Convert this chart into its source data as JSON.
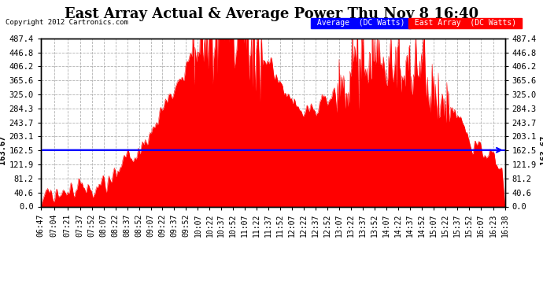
{
  "title": "East Array Actual & Average Power Thu Nov 8 16:40",
  "copyright": "Copyright 2012 Cartronics.com",
  "avg_value": 163.67,
  "avg_label": "163.67",
  "y_max": 487.4,
  "y_ticks": [
    0.0,
    40.6,
    81.2,
    121.9,
    162.5,
    203.1,
    243.7,
    284.3,
    325.0,
    365.6,
    406.2,
    446.8,
    487.4
  ],
  "y_tick_labels": [
    "0.0",
    "40.6",
    "81.2",
    "121.9",
    "162.5",
    "203.1",
    "243.7",
    "284.3",
    "325.0",
    "365.6",
    "406.2",
    "446.8",
    "487.4"
  ],
  "x_labels": [
    "06:47",
    "07:04",
    "07:21",
    "07:37",
    "07:52",
    "08:07",
    "08:22",
    "08:37",
    "08:52",
    "09:07",
    "09:22",
    "09:37",
    "09:52",
    "10:07",
    "10:22",
    "10:37",
    "10:52",
    "11:07",
    "11:22",
    "11:37",
    "11:52",
    "12:07",
    "12:22",
    "12:37",
    "12:52",
    "13:07",
    "13:22",
    "13:37",
    "13:52",
    "14:07",
    "14:22",
    "14:37",
    "14:52",
    "15:07",
    "15:22",
    "15:37",
    "15:52",
    "16:07",
    "16:23",
    "16:38"
  ],
  "bg_color": "#ffffff",
  "fill_color": "#ff0000",
  "avg_line_color": "#0000ff",
  "grid_color": "#aaaaaa",
  "legend_avg_bg": "#0000ff",
  "legend_east_bg": "#ff0000",
  "legend_avg_text": "Average  (DC Watts)",
  "legend_east_text": "East Array  (DC Watts)",
  "title_fontsize": 13,
  "tick_fontsize": 7.5
}
